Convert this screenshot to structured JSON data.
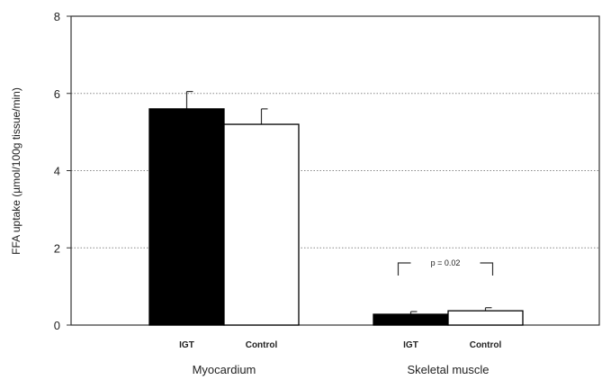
{
  "chart_data": {
    "type": "bar",
    "ylabel": "FFA uptake (µmol/100g tissue/min)",
    "ylim": [
      0,
      8
    ],
    "yticks": [
      "0",
      "2",
      "4",
      "6",
      "8"
    ],
    "grid": "horizontal dotted",
    "groups": [
      {
        "name": "Myocardium",
        "bars": [
          {
            "label": "IGT",
            "value": 5.6,
            "error": 0.45,
            "fill": "#000000"
          },
          {
            "label": "Control",
            "value": 5.2,
            "error": 0.4,
            "fill": "#ffffff"
          }
        ]
      },
      {
        "name": "Skeletal muscle",
        "bars": [
          {
            "label": "IGT",
            "value": 0.28,
            "error": 0.07,
            "fill": "#000000"
          },
          {
            "label": "Control",
            "value": 0.37,
            "error": 0.08,
            "fill": "#ffffff"
          }
        ]
      }
    ],
    "annotation": {
      "text": "p = 0.02",
      "group": "Skeletal muscle"
    }
  }
}
